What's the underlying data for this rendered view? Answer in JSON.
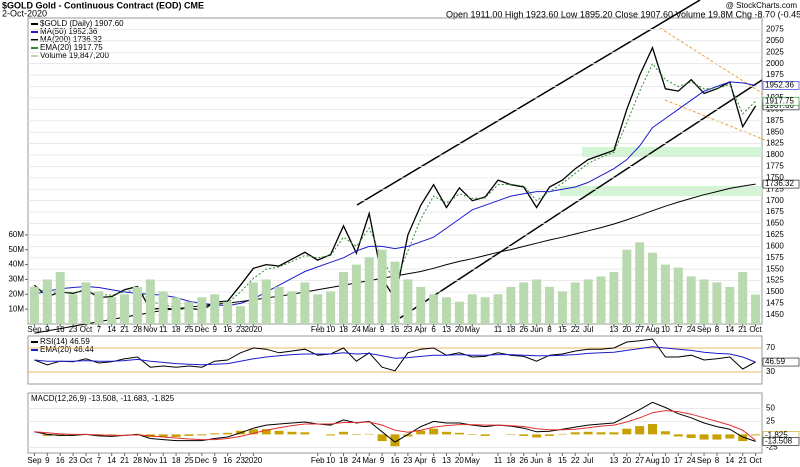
{
  "header": {
    "symbol": "$GOLD Gold - Continuous Contract (EOD) CME",
    "date": "2-Oct-2020",
    "quote": "Open 1911.00 High 1923.60 Low 1895.20 Close 1907.60 Volume 19.8M Chg -8.70 (-0.45%)",
    "credit": "@ StockCharts.com"
  },
  "chart_data": [
    {
      "type": "line",
      "categories": [
        "Sep",
        "9",
        "16",
        "23",
        "Oct",
        "7",
        "14",
        "21",
        "28",
        "Nov",
        "11",
        "18",
        "25",
        "Dec",
        "9",
        "16",
        "23",
        "2020",
        null,
        null,
        null,
        null,
        "Feb",
        "10",
        "18",
        "24",
        "Mar",
        "9",
        "16",
        "23",
        "Apr",
        "6",
        "13",
        "20",
        "May",
        null,
        "11",
        "18",
        "26",
        "Jun",
        "8",
        "15",
        "22",
        "Jul",
        null,
        "13",
        "20",
        "27",
        "Aug",
        "10",
        "17",
        "24",
        "Sep",
        "8",
        "14",
        "21",
        "Oct"
      ],
      "series": [
        {
          "name": "$GOLD (Daily) 1907.60",
          "color": "#000000",
          "width": 1.3,
          "last_label": "1907.60",
          "values": [
            1515,
            1490,
            1500,
            1497,
            1505,
            1488,
            1490,
            1505,
            1512,
            1462,
            1465,
            1462,
            1465,
            1460,
            1478,
            1480,
            1515,
            1552,
            1560,
            1557,
            1572,
            1587,
            1570,
            1582,
            1645,
            1585,
            1672,
            1530,
            1485,
            1625,
            1690,
            1735,
            1685,
            1728,
            1700,
            1708,
            1745,
            1735,
            1730,
            1685,
            1730,
            1745,
            1770,
            1790,
            1800,
            1810,
            1900,
            1975,
            2035,
            1945,
            1940,
            1965,
            1935,
            1945,
            1960,
            1862,
            1907.6
          ]
        },
        {
          "name": "MA(50) 1952.36",
          "color": "#1c1ccc",
          "width": 1,
          "last_label": "1952.36",
          "values": [
            1495,
            1502,
            1507,
            1510,
            1512,
            1510,
            1505,
            1500,
            1497,
            1495,
            1493,
            1488,
            1480,
            1475,
            1472,
            1470,
            1475,
            1485,
            1500,
            1515,
            1530,
            1545,
            1555,
            1565,
            1575,
            1590,
            1600,
            1600,
            1595,
            1600,
            1610,
            1620,
            1640,
            1660,
            1680,
            1690,
            1700,
            1710,
            1715,
            1720,
            1720,
            1725,
            1730,
            1740,
            1755,
            1770,
            1790,
            1820,
            1860,
            1880,
            1900,
            1920,
            1940,
            1950,
            1960,
            1958,
            1952.36
          ]
        },
        {
          "name": "MA(200) 1736.32",
          "color": "#000000",
          "width": 1,
          "last_label": "1736.32",
          "values": [
            1410,
            1415,
            1420,
            1425,
            1430,
            1435,
            1440,
            1445,
            1450,
            1455,
            1460,
            1463,
            1467,
            1470,
            1473,
            1476,
            1479,
            1483,
            1487,
            1491,
            1495,
            1500,
            1505,
            1510,
            1515,
            1520,
            1525,
            1530,
            1535,
            1540,
            1545,
            1552,
            1560,
            1567,
            1573,
            1580,
            1587,
            1593,
            1600,
            1607,
            1614,
            1620,
            1627,
            1634,
            1641,
            1649,
            1658,
            1668,
            1678,
            1688,
            1697,
            1705,
            1713,
            1720,
            1727,
            1732,
            1736.32
          ]
        },
        {
          "name": "EMA(20) 1917.75",
          "color": "#2e8b2e",
          "width": 1,
          "dash": true,
          "last_label": "1917.75",
          "values": [
            1510,
            1500,
            1500,
            1499,
            1502,
            1495,
            1493,
            1500,
            1506,
            1480,
            1472,
            1466,
            1465,
            1462,
            1472,
            1476,
            1500,
            1530,
            1550,
            1555,
            1567,
            1580,
            1575,
            1580,
            1620,
            1600,
            1640,
            1575,
            1520,
            1590,
            1660,
            1710,
            1695,
            1715,
            1705,
            1706,
            1735,
            1736,
            1732,
            1700,
            1720,
            1738,
            1760,
            1782,
            1795,
            1806,
            1870,
            1940,
            2000,
            1965,
            1950,
            1960,
            1945,
            1945,
            1955,
            1890,
            1917.75
          ]
        },
        {
          "name": "Volume 19,847,200",
          "type": "bar",
          "axis": "y2",
          "color": "#b9d9ae",
          "values": [
            25,
            30,
            35,
            20,
            28,
            22,
            18,
            20,
            25,
            30,
            22,
            18,
            15,
            18,
            20,
            15,
            12,
            28,
            30,
            25,
            22,
            28,
            20,
            22,
            35,
            40,
            45,
            50,
            42,
            30,
            25,
            20,
            18,
            15,
            20,
            18,
            20,
            25,
            28,
            30,
            25,
            22,
            28,
            30,
            32,
            35,
            50,
            55,
            48,
            40,
            38,
            32,
            30,
            28,
            25,
            35,
            19.8
          ]
        }
      ],
      "ylim": [
        1430,
        2100
      ],
      "yticks": [
        1450,
        1475,
        1500,
        1525,
        1550,
        1575,
        1600,
        1625,
        1650,
        1675,
        1700,
        1725,
        1750,
        1775,
        1800,
        1825,
        1850,
        1875,
        1900,
        1925,
        1950,
        1975,
        2000,
        2025,
        2050,
        2075
      ],
      "y2lim": [
        0,
        206
      ],
      "y2ticks": [
        {
          "value": 10,
          "label": "10M"
        },
        {
          "value": 20,
          "label": "20M"
        },
        {
          "value": 30,
          "label": "30M"
        },
        {
          "value": 40,
          "label": "40M"
        },
        {
          "value": 50,
          "label": "50M"
        },
        {
          "value": 60,
          "label": "60M"
        }
      ],
      "grid": true,
      "grid_color": "#e4e4e4"
    },
    {
      "type": "line",
      "series": [
        {
          "name": "RSI(14) 46.59",
          "color": "#000000",
          "width": 1,
          "last_label": "46.59",
          "values": [
            50,
            42,
            48,
            47,
            52,
            45,
            47,
            52,
            55,
            38,
            40,
            38,
            40,
            38,
            48,
            50,
            62,
            70,
            68,
            62,
            65,
            68,
            58,
            60,
            70,
            48,
            62,
            38,
            32,
            62,
            68,
            70,
            58,
            62,
            55,
            56,
            62,
            58,
            56,
            48,
            58,
            60,
            65,
            68,
            68,
            70,
            80,
            82,
            85,
            55,
            55,
            58,
            50,
            52,
            55,
            35,
            46.59
          ]
        },
        {
          "name": "EMA(20) 46.44",
          "color": "#1c1ccc",
          "width": 1,
          "values": [
            50,
            48,
            48,
            48,
            49,
            48,
            48,
            49,
            51,
            48,
            46,
            44,
            43,
            42,
            43,
            44,
            48,
            52,
            55,
            57,
            59,
            60,
            60,
            60,
            62,
            60,
            61,
            57,
            53,
            54,
            56,
            58,
            58,
            59,
            58,
            58,
            59,
            59,
            58,
            57,
            57,
            58,
            59,
            61,
            62,
            63,
            66,
            69,
            72,
            70,
            68,
            66,
            63,
            61,
            60,
            55,
            46.44
          ]
        }
      ],
      "ylim": [
        10,
        90
      ],
      "yticks": [
        30,
        70
      ],
      "grid": true,
      "grid_color": "#e8a33a"
    },
    {
      "type": "line",
      "title": "MACD(12,26,9) -13.508, -11.683, -1.825",
      "categories": [
        "Sep",
        "9",
        "16",
        "23",
        "Oct",
        "7",
        "14",
        "21",
        "28",
        "Nov",
        "11",
        "18",
        "25",
        "Dec",
        "9",
        "16",
        "23",
        "2020",
        null,
        null,
        null,
        null,
        "Feb",
        "10",
        "18",
        "24",
        "Mar",
        "9",
        "16",
        "23",
        "Apr",
        "6",
        "13",
        "20",
        "May",
        null,
        "11",
        "18",
        "26",
        "Jun",
        "8",
        "15",
        "22",
        "Jul",
        null,
        "13",
        "20",
        "27",
        "Aug",
        "10",
        "17",
        "24",
        "Sep",
        "8",
        "14",
        "21",
        "Oct"
      ],
      "series": [
        {
          "color": "#c8a000",
          "type": "bar",
          "last_label": "-1.825",
          "values": [
            0,
            -3,
            -3,
            -2,
            0,
            -2,
            -2,
            0,
            1,
            -5,
            -5,
            -5,
            -3,
            -2,
            2,
            3,
            7,
            10,
            10,
            7,
            5,
            4,
            0,
            -2,
            5,
            -1,
            1,
            -13,
            -23,
            -4,
            7,
            11,
            5,
            3,
            -1,
            -3,
            0,
            -1,
            -3,
            -6,
            -3,
            1,
            4,
            5,
            4,
            4,
            11,
            16,
            20,
            6,
            -4,
            -7,
            -10,
            -10,
            -8,
            -13,
            -1.825
          ]
        },
        {
          "color": "#000000",
          "width": 1,
          "last_label": "-13.508",
          "values": [
            5,
            0,
            -2,
            -2,
            0,
            -3,
            -4,
            -2,
            0,
            -8,
            -10,
            -12,
            -12,
            -12,
            -8,
            -5,
            3,
            12,
            18,
            20,
            22,
            24,
            20,
            18,
            28,
            22,
            25,
            5,
            -15,
            0,
            15,
            25,
            22,
            22,
            18,
            15,
            18,
            16,
            12,
            5,
            6,
            10,
            14,
            18,
            20,
            22,
            35,
            48,
            62,
            52,
            40,
            32,
            22,
            15,
            10,
            -5,
            -13.508
          ]
        },
        {
          "color": "#e03030",
          "width": 1,
          "values": [
            5,
            3,
            1,
            0,
            0,
            -1,
            -2,
            -2,
            -1,
            -3,
            -5,
            -7,
            -9,
            -10,
            -10,
            -8,
            -4,
            2,
            8,
            13,
            17,
            20,
            20,
            20,
            23,
            23,
            24,
            18,
            8,
            4,
            8,
            14,
            17,
            19,
            19,
            18,
            18,
            17,
            15,
            11,
            9,
            9,
            10,
            13,
            16,
            18,
            24,
            32,
            42,
            46,
            44,
            39,
            32,
            25,
            18,
            8,
            -11.683
          ]
        }
      ],
      "ylim": [
        -36,
        80
      ],
      "yticks": [
        -25,
        25,
        50
      ],
      "grid": true,
      "grid_color": "#e4e4e4"
    }
  ]
}
